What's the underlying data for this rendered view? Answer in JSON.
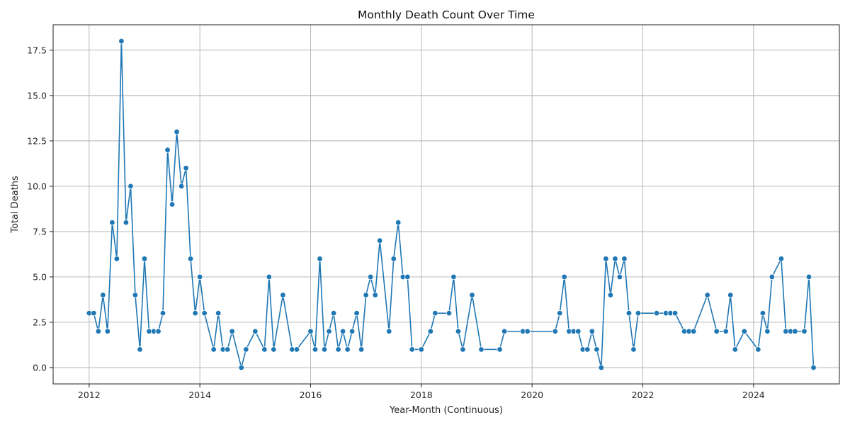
{
  "chart_data": {
    "type": "line",
    "title": "Monthly Death Count Over Time",
    "xlabel": "Year-Month (Continuous)",
    "ylabel": "Total Deaths",
    "xlim": [
      2011.35,
      2025.55
    ],
    "ylim": [
      -0.9,
      18.9
    ],
    "x_ticks": [
      2012,
      2014,
      2016,
      2018,
      2020,
      2022,
      2024
    ],
    "x_tick_labels": [
      "2012",
      "2014",
      "2016",
      "2018",
      "2020",
      "2022",
      "2024"
    ],
    "y_ticks": [
      0,
      2.5,
      5,
      7.5,
      10,
      12.5,
      15,
      17.5
    ],
    "y_tick_labels": [
      "0.0",
      "2.5",
      "5.0",
      "7.5",
      "10.0",
      "12.5",
      "15.0",
      "17.5"
    ],
    "grid": true,
    "line_color": "#1f77b4",
    "marker": "circle",
    "series": [
      {
        "x": [
          2012.0,
          2012.083,
          2012.167,
          2012.25,
          2012.333,
          2012.417,
          2012.5,
          2012.583,
          2012.667,
          2012.75,
          2012.833,
          2012.917,
          2013.0,
          2013.083,
          2013.167,
          2013.25,
          2013.333,
          2013.417,
          2013.5,
          2013.583,
          2013.667,
          2013.75,
          2013.833,
          2013.917,
          2014.0,
          2014.083,
          2014.25,
          2014.333,
          2014.417,
          2014.5,
          2014.583,
          2014.75,
          2014.833,
          2015.0,
          2015.167,
          2015.25,
          2015.333,
          2015.5,
          2015.667,
          2015.75,
          2016.0,
          2016.083,
          2016.167,
          2016.25,
          2016.333,
          2016.417,
          2016.5,
          2016.583,
          2016.667,
          2016.75,
          2016.833,
          2016.917,
          2017.0,
          2017.083,
          2017.167,
          2017.25,
          2017.417,
          2017.5,
          2017.583,
          2017.667,
          2017.75,
          2017.833,
          2018.0,
          2018.167,
          2018.25,
          2018.5,
          2018.583,
          2018.667,
          2018.75,
          2018.917,
          2019.083,
          2019.417,
          2019.5,
          2019.833,
          2019.917,
          2020.417,
          2020.5,
          2020.583,
          2020.667,
          2020.75,
          2020.833,
          2020.917,
          2021.0,
          2021.083,
          2021.167,
          2021.25,
          2021.333,
          2021.417,
          2021.5,
          2021.583,
          2021.667,
          2021.75,
          2021.833,
          2021.917,
          2022.25,
          2022.417,
          2022.5,
          2022.583,
          2022.75,
          2022.833,
          2022.917,
          2023.167,
          2023.333,
          2023.5,
          2023.583,
          2023.667,
          2023.833,
          2024.083,
          2024.167,
          2024.25,
          2024.333,
          2024.5,
          2024.583,
          2024.667,
          2024.75,
          2024.917,
          2025.0,
          2025.083
        ],
        "y": [
          3,
          3,
          2,
          4,
          2,
          8,
          6,
          18,
          8,
          10,
          4,
          1,
          6,
          2,
          2,
          2,
          3,
          12,
          9,
          13,
          10,
          11,
          6,
          3,
          5,
          3,
          1,
          3,
          1,
          1,
          2,
          0,
          1,
          2,
          1,
          5,
          1,
          4,
          1,
          1,
          2,
          1,
          6,
          1,
          2,
          3,
          1,
          2,
          1,
          2,
          3,
          1,
          4,
          5,
          4,
          7,
          2,
          6,
          8,
          5,
          5,
          1,
          1,
          2,
          3,
          3,
          5,
          2,
          1,
          4,
          1,
          1,
          2,
          2,
          2,
          2,
          3,
          5,
          2,
          2,
          2,
          1,
          1,
          2,
          1,
          0,
          6,
          4,
          6,
          5,
          6,
          3,
          1,
          3,
          3,
          3,
          3,
          3,
          2,
          2,
          2,
          4,
          2,
          2,
          4,
          1,
          2,
          1,
          3,
          2,
          5,
          6,
          2,
          2,
          2,
          2,
          5,
          0
        ]
      }
    ]
  }
}
